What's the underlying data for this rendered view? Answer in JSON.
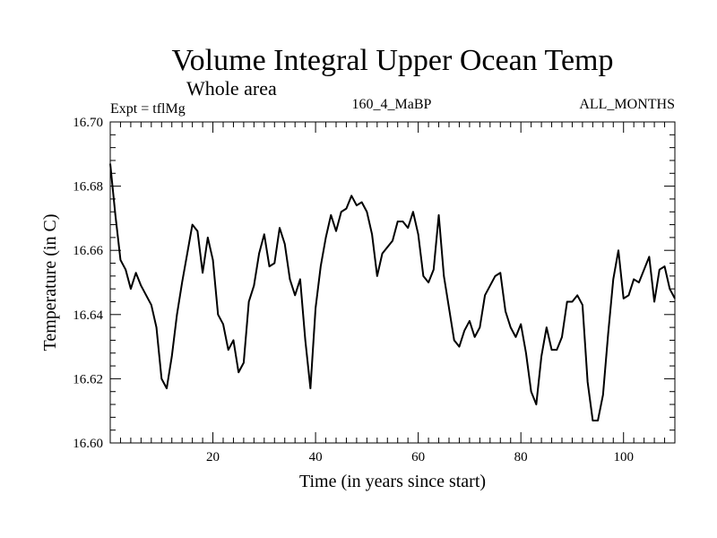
{
  "chart_data": {
    "type": "line",
    "title": "Volume Integral Upper Ocean Temp",
    "subtitle": "Whole area",
    "annotations": {
      "left": "Expt = tflMg",
      "center": "160_4_MaBP",
      "right": "ALL_MONTHS"
    },
    "xlabel": "Time (in years since start)",
    "ylabel": "Temperature (in C)",
    "xlim": [
      0,
      110
    ],
    "ylim": [
      16.6,
      16.7
    ],
    "xticks": [
      20,
      40,
      60,
      80,
      100
    ],
    "xtick_labels": [
      "20",
      "40",
      "60",
      "80",
      "100"
    ],
    "yticks": [
      16.6,
      16.62,
      16.64,
      16.66,
      16.68,
      16.7
    ],
    "ytick_labels": [
      "16.60",
      "16.62",
      "16.64",
      "16.66",
      "16.68",
      "16.70"
    ],
    "grid": false,
    "series": [
      {
        "name": "Temperature",
        "x": [
          0,
          1,
          2,
          3,
          4,
          5,
          6,
          7,
          8,
          9,
          10,
          11,
          12,
          13,
          14,
          15,
          16,
          17,
          18,
          19,
          20,
          21,
          22,
          23,
          24,
          25,
          26,
          27,
          28,
          29,
          30,
          31,
          32,
          33,
          34,
          35,
          36,
          37,
          38,
          39,
          40,
          41,
          42,
          43,
          44,
          45,
          46,
          47,
          48,
          49,
          50,
          51,
          52,
          53,
          54,
          55,
          56,
          57,
          58,
          59,
          60,
          61,
          62,
          63,
          64,
          65,
          66,
          67,
          68,
          69,
          70,
          71,
          72,
          73,
          74,
          75,
          76,
          77,
          78,
          79,
          80,
          81,
          82,
          83,
          84,
          85,
          86,
          87,
          88,
          89,
          90,
          91,
          92,
          93,
          94,
          95,
          96,
          97,
          98,
          99,
          100,
          101,
          102,
          103,
          104,
          105,
          106,
          107,
          108,
          109,
          110
        ],
        "values": [
          16.687,
          16.671,
          16.657,
          16.654,
          16.648,
          16.653,
          16.649,
          16.646,
          16.643,
          16.636,
          16.62,
          16.617,
          16.627,
          16.64,
          16.65,
          16.659,
          16.668,
          16.666,
          16.653,
          16.664,
          16.657,
          16.64,
          16.637,
          16.629,
          16.632,
          16.622,
          16.625,
          16.644,
          16.649,
          16.659,
          16.665,
          16.655,
          16.656,
          16.667,
          16.662,
          16.651,
          16.646,
          16.651,
          16.632,
          16.617,
          16.642,
          16.655,
          16.664,
          16.671,
          16.666,
          16.672,
          16.673,
          16.677,
          16.674,
          16.675,
          16.672,
          16.665,
          16.652,
          16.659,
          16.661,
          16.663,
          16.669,
          16.669,
          16.667,
          16.672,
          16.665,
          16.652,
          16.65,
          16.654,
          16.671,
          16.652,
          16.642,
          16.632,
          16.63,
          16.635,
          16.638,
          16.633,
          16.636,
          16.646,
          16.649,
          16.652,
          16.653,
          16.641,
          16.636,
          16.633,
          16.637,
          16.628,
          16.616,
          16.612,
          16.627,
          16.636,
          16.629,
          16.629,
          16.633,
          16.644,
          16.644,
          16.646,
          16.643,
          16.619,
          16.607,
          16.607,
          16.615,
          16.634,
          16.651,
          16.66,
          16.645,
          16.646,
          16.651,
          16.65,
          16.654,
          16.658,
          16.644,
          16.654,
          16.655,
          16.648,
          16.645
        ]
      }
    ]
  }
}
